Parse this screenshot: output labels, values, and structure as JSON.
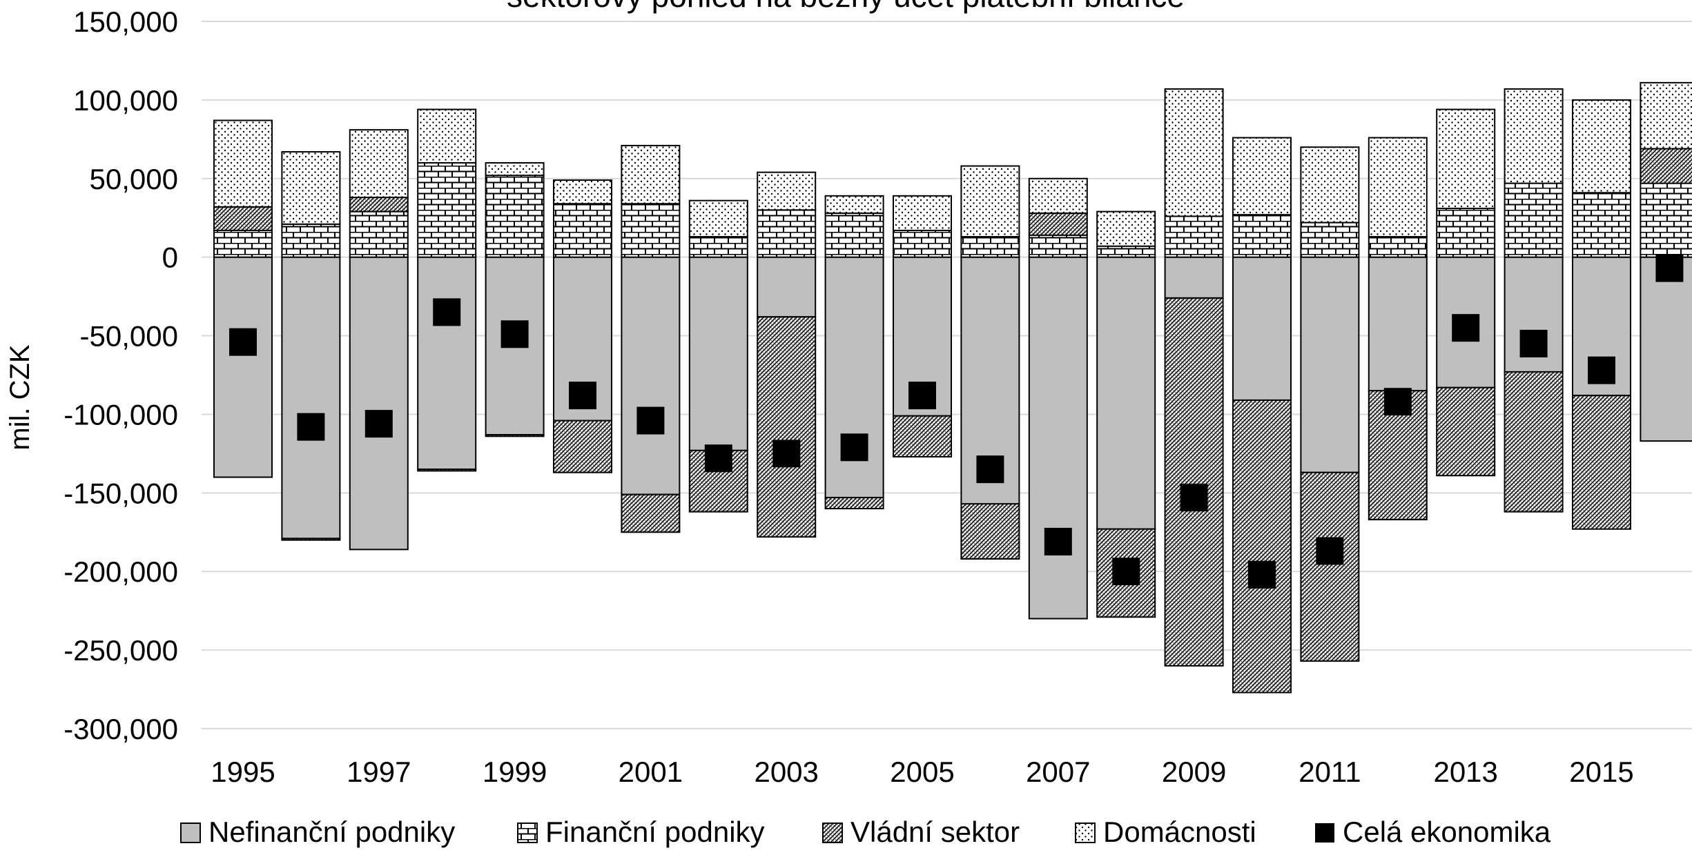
{
  "chart_data": {
    "type": "bar",
    "stacked": true,
    "title": "sektorový  pohled na běžný účet platební bilance",
    "ylabel": "mil. CZK",
    "xlabel": "",
    "ylim": [
      -300000,
      150000
    ],
    "yticks": [
      150000,
      100000,
      50000,
      0,
      -50000,
      -100000,
      -150000,
      -200000,
      -250000,
      -300000
    ],
    "ytick_labels": [
      "150,000",
      "100,000",
      "50,000",
      "0",
      "-50,000",
      "-100,000",
      "-150,000",
      "-200,000",
      "-250,000",
      "-300,000"
    ],
    "grid": "horizontal",
    "legend_position": "bottom",
    "categories": [
      "1995",
      "1996",
      "1997",
      "1998",
      "1999",
      "2000",
      "2001",
      "2002",
      "2003",
      "2004",
      "2005",
      "2006",
      "2007",
      "2008",
      "2009",
      "2010",
      "2011",
      "2012",
      "2013",
      "2014",
      "2015",
      "2016"
    ],
    "xtick_labels": [
      "1995",
      "1997",
      "1999",
      "2001",
      "2003",
      "2005",
      "2007",
      "2009",
      "2011",
      "2013",
      "2015"
    ],
    "series": [
      {
        "name": "Nefinanční podniky",
        "pattern": "solid-gray",
        "color": "#bfbfbf",
        "values": [
          -140000,
          -179000,
          -186000,
          -135000,
          -113000,
          -104000,
          -151000,
          -123000,
          -38000,
          -153000,
          -101000,
          -157000,
          -230000,
          -173000,
          -26000,
          -91000,
          -137000,
          -85000,
          -83000,
          -73000,
          -88000,
          -117000
        ]
      },
      {
        "name": "Finanční podniky",
        "pattern": "brick",
        "values": [
          17000,
          21000,
          29000,
          60000,
          52000,
          34000,
          34000,
          13000,
          30000,
          28000,
          17000,
          13000,
          14000,
          7000,
          26000,
          27000,
          22000,
          13000,
          31000,
          47000,
          41000,
          47000
        ]
      },
      {
        "name": "Vládní sektor",
        "pattern": "hatch",
        "values": [
          15000,
          -1000,
          9000,
          -1000,
          -1000,
          -33000,
          -24000,
          -39000,
          -140000,
          -7000,
          -26000,
          -35000,
          14000,
          -56000,
          -234000,
          -186000,
          -120000,
          -82000,
          -56000,
          -89000,
          -85000,
          22000
        ]
      },
      {
        "name": "Domácnosti",
        "pattern": "dots",
        "values": [
          55000,
          46000,
          43000,
          34000,
          8000,
          15000,
          37000,
          23000,
          24000,
          11000,
          22000,
          45000,
          22000,
          22000,
          81000,
          49000,
          48000,
          63000,
          63000,
          60000,
          59000,
          42000
        ]
      },
      {
        "name": "Celá ekonomika",
        "type": "marker",
        "color": "#000000",
        "values": [
          -54000,
          -108000,
          -106000,
          -35000,
          -49000,
          -88000,
          -104000,
          -128000,
          -125000,
          -121000,
          -88000,
          -135000,
          -181000,
          -200000,
          -153000,
          -202000,
          -187000,
          -92000,
          -45000,
          -55000,
          -72000,
          -7000
        ]
      }
    ]
  }
}
